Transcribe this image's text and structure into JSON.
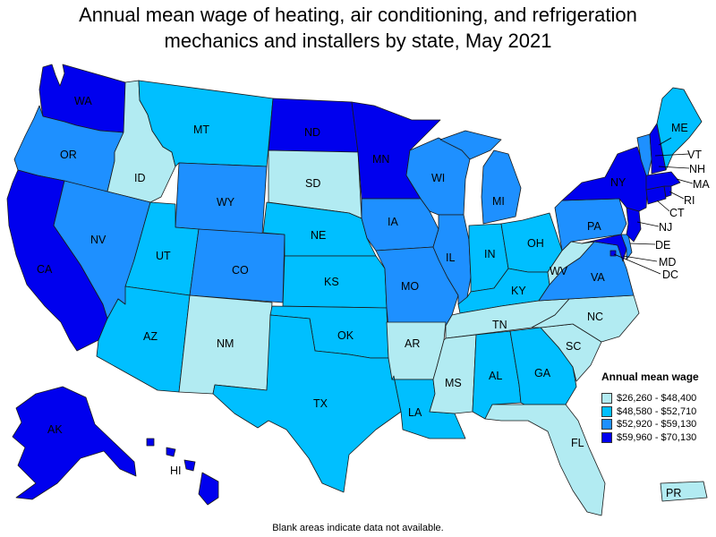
{
  "title_line1": "Annual mean wage of heating, air conditioning, and refrigeration",
  "title_line2": "mechanics and installers by state, May 2021",
  "legend": {
    "title": "Annual mean wage",
    "items": [
      {
        "range": "$26,260 - $48,400",
        "color": "#b2ebf2"
      },
      {
        "range": "$48,580 - $52,710",
        "color": "#00bfff"
      },
      {
        "range": "$52,920 - $59,130",
        "color": "#1e90ff"
      },
      {
        "range": "$59,960 - $70,130",
        "color": "#0000ee"
      }
    ]
  },
  "footnote": "Blank areas indicate data not available.",
  "states": {
    "WA": {
      "label": "WA",
      "tier": 3
    },
    "OR": {
      "label": "OR",
      "tier": 2
    },
    "CA": {
      "label": "CA",
      "tier": 3
    },
    "ID": {
      "label": "ID",
      "tier": 0
    },
    "NV": {
      "label": "NV",
      "tier": 2
    },
    "MT": {
      "label": "MT",
      "tier": 1
    },
    "WY": {
      "label": "WY",
      "tier": 2
    },
    "UT": {
      "label": "UT",
      "tier": 1
    },
    "AZ": {
      "label": "AZ",
      "tier": 1
    },
    "CO": {
      "label": "CO",
      "tier": 2
    },
    "NM": {
      "label": "NM",
      "tier": 0
    },
    "ND": {
      "label": "ND",
      "tier": 3
    },
    "SD": {
      "label": "SD",
      "tier": 0
    },
    "NE": {
      "label": "NE",
      "tier": 1
    },
    "KS": {
      "label": "KS",
      "tier": 1
    },
    "OK": {
      "label": "OK",
      "tier": 1
    },
    "TX": {
      "label": "TX",
      "tier": 1
    },
    "MN": {
      "label": "MN",
      "tier": 3
    },
    "IA": {
      "label": "IA",
      "tier": 2
    },
    "MO": {
      "label": "MO",
      "tier": 2
    },
    "AR": {
      "label": "AR",
      "tier": 0
    },
    "LA": {
      "label": "LA",
      "tier": 1
    },
    "WI": {
      "label": "WI",
      "tier": 2
    },
    "IL": {
      "label": "IL",
      "tier": 2
    },
    "MI": {
      "label": "MI",
      "tier": 2
    },
    "IN": {
      "label": "IN",
      "tier": 1
    },
    "OH": {
      "label": "OH",
      "tier": 1
    },
    "KY": {
      "label": "KY",
      "tier": 1
    },
    "TN": {
      "label": "TN",
      "tier": 0
    },
    "MS": {
      "label": "MS",
      "tier": 0
    },
    "AL": {
      "label": "AL",
      "tier": 1
    },
    "GA": {
      "label": "GA",
      "tier": 1
    },
    "FL": {
      "label": "FL",
      "tier": 0
    },
    "SC": {
      "label": "SC",
      "tier": 0
    },
    "NC": {
      "label": "NC",
      "tier": 0
    },
    "VA": {
      "label": "VA",
      "tier": 2
    },
    "WV": {
      "label": "WV",
      "tier": 0
    },
    "PA": {
      "label": "PA",
      "tier": 2
    },
    "NY": {
      "label": "NY",
      "tier": 3
    },
    "ME": {
      "label": "ME",
      "tier": 1
    },
    "VT": {
      "label": "VT",
      "tier": 2
    },
    "NH": {
      "label": "NH",
      "tier": 3
    },
    "MA": {
      "label": "MA",
      "tier": 3
    },
    "RI": {
      "label": "RI",
      "tier": 3
    },
    "CT": {
      "label": "CT",
      "tier": 3
    },
    "NJ": {
      "label": "NJ",
      "tier": 3
    },
    "DE": {
      "label": "DE",
      "tier": 2
    },
    "MD": {
      "label": "MD",
      "tier": 3
    },
    "DC": {
      "label": "DC",
      "tier": 3
    },
    "AK": {
      "label": "AK",
      "tier": 3
    },
    "HI": {
      "label": "HI",
      "tier": 3
    },
    "PR": {
      "label": "PR",
      "tier": 0
    }
  }
}
